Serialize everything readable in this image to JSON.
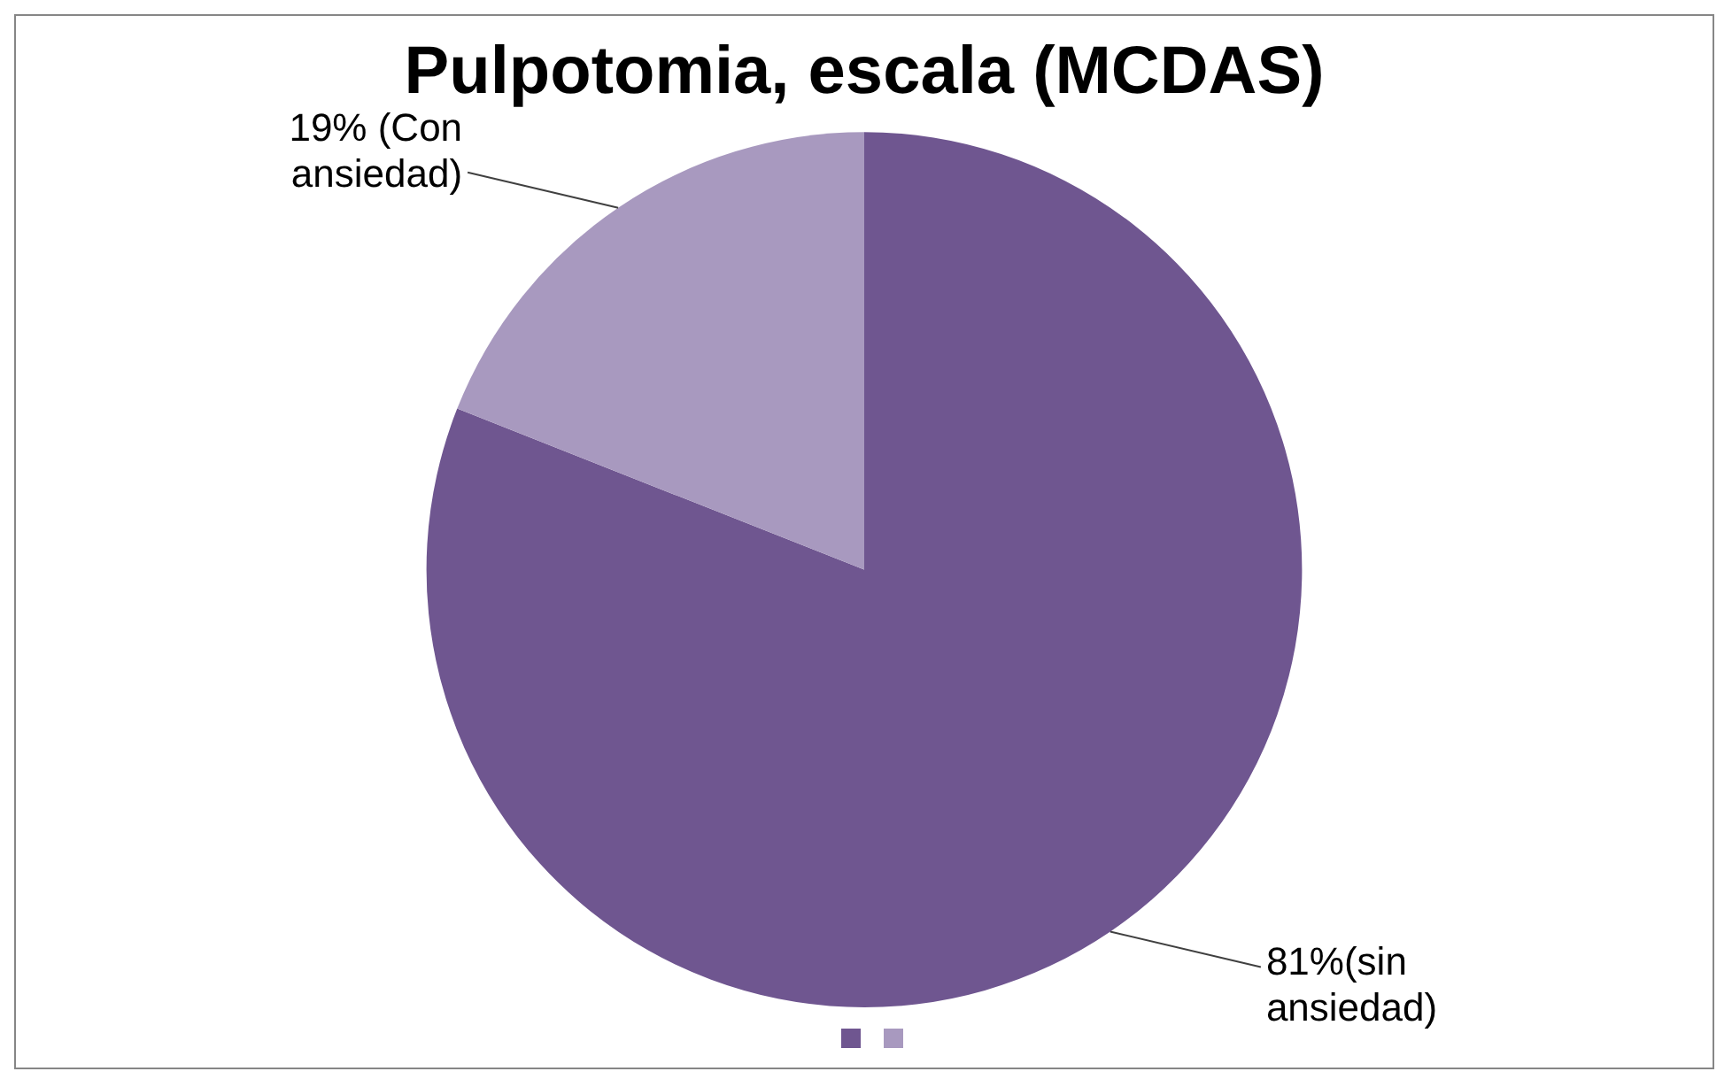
{
  "chart_data": {
    "type": "pie",
    "title": "Pulpotomia, escala (MCDAS)",
    "categories": [
      null,
      null
    ],
    "values": [
      81,
      19
    ],
    "colors": [
      "#6f5690",
      "#a899bf"
    ],
    "value_labels": [
      "81%(sin ansiedad)",
      "19% (Con ansiedad)"
    ]
  }
}
